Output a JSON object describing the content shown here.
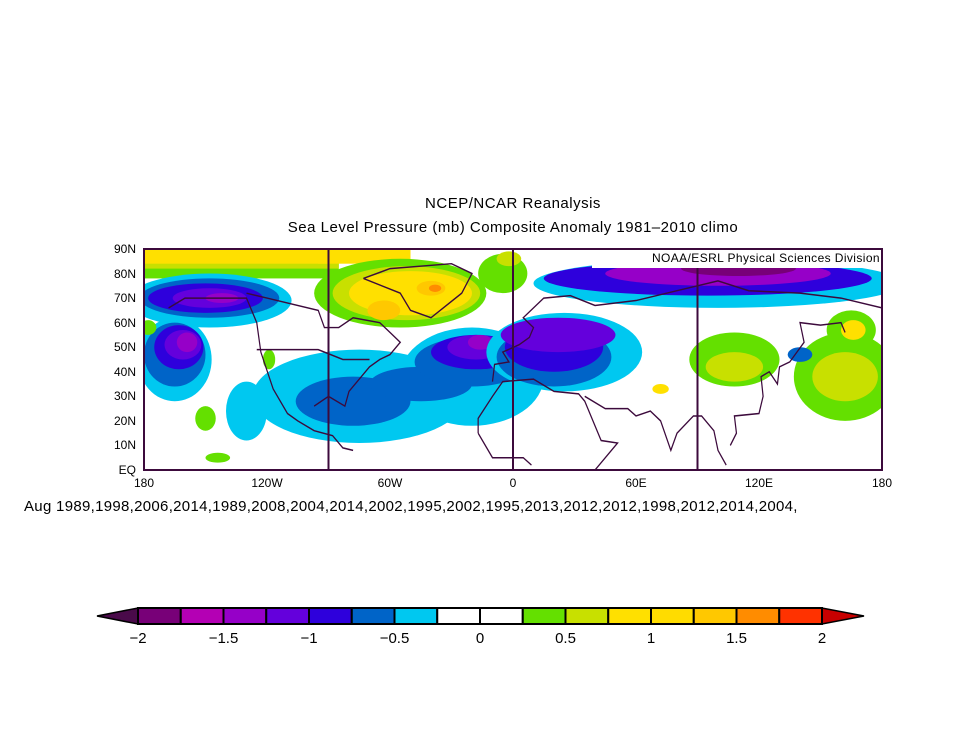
{
  "title": {
    "line1": "NCEP/NCAR Reanalysis",
    "line2": "Sea Level Pressure (mb) Composite Anomaly 1981–2010 climo"
  },
  "credit": "NOAA/ESRL Physical Sciences Division",
  "composite_years": "Aug  1989,1998,2006,2014,1989,2008,2004,2014,2002,1995,2002,1995,2013,2012,2012,1998,2012,2014,2004,",
  "map": {
    "lat_labels": [
      "90N",
      "80N",
      "70N",
      "60N",
      "50N",
      "40N",
      "30N",
      "20N",
      "10N",
      "EQ"
    ],
    "lon_labels": [
      "180",
      "120W",
      "60W",
      "0",
      "60E",
      "120E",
      "180"
    ],
    "lon_range": [
      -180,
      180
    ],
    "lat_range": [
      0,
      90
    ],
    "coastline_color": "#3c0a3c"
  },
  "colorbar": {
    "labels": [
      "−2",
      "−1.5",
      "−1",
      "−0.5",
      "0",
      "0.5",
      "1",
      "1.5",
      "2"
    ],
    "levels": [
      -2,
      -1.75,
      -1.5,
      -1.25,
      -1,
      -0.75,
      -0.5,
      -0.25,
      0,
      0.25,
      0.5,
      0.75,
      1,
      1.25,
      1.5,
      1.75,
      2
    ],
    "under_color": "#4a0a4a",
    "over_color": "#c80000",
    "colors": [
      "#780078",
      "#b400b4",
      "#9600c8",
      "#6400dc",
      "#2e00dc",
      "#0064c8",
      "#00c8f0",
      "#ffffff",
      "#ffffff",
      "#64e000",
      "#c8e000",
      "#ffe000",
      "#ffdc00",
      "#ffc800",
      "#ff8c00",
      "#ff3200"
    ]
  }
}
